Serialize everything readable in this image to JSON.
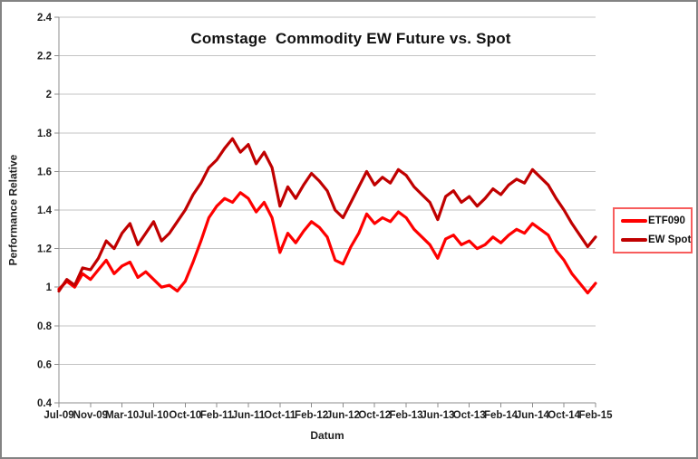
{
  "chart_data": {
    "type": "line",
    "title": "Comstage  Commodity EW Future vs. Spot",
    "xlabel": "Datum",
    "ylabel": "Performance Relative",
    "ylim": [
      0.4,
      2.4
    ],
    "y_tick_labels": [
      "2.4",
      "2.2",
      "2",
      "1.8",
      "1.6",
      "1.4",
      "1.2",
      "1",
      "0.8",
      "0.6",
      "0.4"
    ],
    "x_tick_labels": [
      "Jul-09",
      "Nov-09",
      "Mar-10",
      "Jul-10",
      "Oct-10",
      "Feb-11",
      "Jun-11",
      "Oct-11",
      "Feb-12",
      "Jun-12",
      "Oct-12",
      "Feb-13",
      "Jun-13",
      "Oct-13",
      "Feb-14",
      "Jun-14",
      "Oct-14",
      "Feb-15"
    ],
    "points_between_ticks": 4,
    "grid": "horizontal",
    "legend_position": "right",
    "colors": {
      "gridline": "#c3c3c3",
      "axis": "#8c8c8c",
      "legend_border": "#f75d5d"
    },
    "series": [
      {
        "name": "ETF090",
        "color": "#fe0000",
        "values": [
          0.99,
          1.03,
          1.0,
          1.07,
          1.04,
          1.09,
          1.14,
          1.07,
          1.11,
          1.13,
          1.05,
          1.08,
          1.04,
          1.0,
          1.01,
          0.98,
          1.03,
          1.13,
          1.24,
          1.36,
          1.42,
          1.46,
          1.44,
          1.49,
          1.46,
          1.39,
          1.44,
          1.36,
          1.18,
          1.28,
          1.23,
          1.29,
          1.34,
          1.31,
          1.26,
          1.14,
          1.12,
          1.21,
          1.28,
          1.38,
          1.33,
          1.36,
          1.34,
          1.39,
          1.36,
          1.3,
          1.26,
          1.22,
          1.15,
          1.25,
          1.27,
          1.22,
          1.24,
          1.2,
          1.22,
          1.26,
          1.23,
          1.27,
          1.3,
          1.28,
          1.33,
          1.3,
          1.27,
          1.19,
          1.14,
          1.07,
          1.02,
          0.97,
          1.02
        ]
      },
      {
        "name": "EW Spot",
        "color": "#c00000",
        "values": [
          0.98,
          1.04,
          1.01,
          1.1,
          1.09,
          1.15,
          1.24,
          1.2,
          1.28,
          1.33,
          1.22,
          1.28,
          1.34,
          1.24,
          1.28,
          1.34,
          1.4,
          1.48,
          1.54,
          1.62,
          1.66,
          1.72,
          1.77,
          1.7,
          1.74,
          1.64,
          1.7,
          1.62,
          1.42,
          1.52,
          1.46,
          1.53,
          1.59,
          1.55,
          1.5,
          1.4,
          1.36,
          1.44,
          1.52,
          1.6,
          1.53,
          1.57,
          1.54,
          1.61,
          1.58,
          1.52,
          1.48,
          1.44,
          1.35,
          1.47,
          1.5,
          1.44,
          1.47,
          1.42,
          1.46,
          1.51,
          1.48,
          1.53,
          1.56,
          1.54,
          1.61,
          1.57,
          1.53,
          1.46,
          1.4,
          1.33,
          1.27,
          1.21,
          1.26
        ]
      }
    ]
  }
}
